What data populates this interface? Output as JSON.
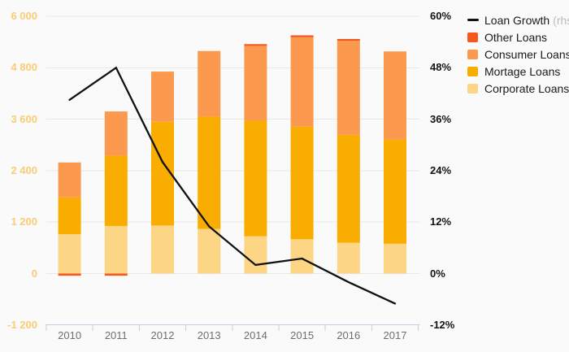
{
  "chart_data": {
    "type": "bar-line-combo",
    "title": "",
    "categories": [
      "2010",
      "2011",
      "2012",
      "2013",
      "2014",
      "2015",
      "2016",
      "2017"
    ],
    "bar_series": [
      {
        "name": "Corporate Loans",
        "color": "#FCD684",
        "values": [
          920,
          1110,
          1120,
          1040,
          870,
          800,
          720,
          695
        ]
      },
      {
        "name": "Mortage Loans",
        "color": "#F8AD00",
        "values": [
          855,
          1640,
          2420,
          2620,
          2695,
          2625,
          2515,
          2425
        ]
      },
      {
        "name": "Consumer Loans",
        "color": "#FB9A4E",
        "values": [
          815,
          1030,
          1170,
          1530,
          1745,
          2085,
          2195,
          2060
        ]
      },
      {
        "name": "Other Loans",
        "color": "#F4581D",
        "values": [
          -50,
          -50,
          0,
          0,
          40,
          45,
          40,
          0
        ]
      }
    ],
    "line_series": {
      "name": "Loan Growth",
      "axis": "rhs",
      "color": "#111111",
      "values": [
        40.5,
        48,
        26,
        11,
        2,
        3.5,
        -2,
        -7
      ]
    },
    "left_axis": {
      "min": -1200,
      "max": 6000,
      "step": 1200,
      "ticks": [
        "6 000",
        "4 800",
        "3 600",
        "2 400",
        "1 200",
        "0",
        "-1 200"
      ]
    },
    "right_axis": {
      "min": -12,
      "max": 60,
      "step": 12,
      "ticks": [
        "60%",
        "48%",
        "36%",
        "24%",
        "12%",
        "0%",
        "-12%"
      ]
    },
    "grid": true,
    "legend_position": "top-right"
  },
  "legend": {
    "items": [
      {
        "key": "loan-growth",
        "label": "Loan Growth",
        "suffix": "(rhs)",
        "glyph": "line",
        "color": "#111111"
      },
      {
        "key": "other-loans",
        "label": "Other Loans",
        "suffix": "",
        "glyph": "square",
        "color": "#F4581D"
      },
      {
        "key": "consumer-loans",
        "label": "Consumer Loans",
        "suffix": "",
        "glyph": "square",
        "color": "#FB9A4E"
      },
      {
        "key": "mortage-loans",
        "label": "Mortage Loans",
        "suffix": "",
        "glyph": "square",
        "color": "#F8AD00"
      },
      {
        "key": "corporate-loans",
        "label": "Corporate Loans",
        "suffix": "",
        "glyph": "square",
        "color": "#FCD684"
      }
    ]
  },
  "colors": {
    "background": "#FAFAFA",
    "gridline": "#E8E8E8",
    "axis_line": "#C5CFE0",
    "left_axis_label": "#FACC74",
    "right_axis_label": "#141414",
    "x_axis_label": "#6E6E6E",
    "legend_suffix": "#BBBBBB",
    "line": "#111111"
  }
}
